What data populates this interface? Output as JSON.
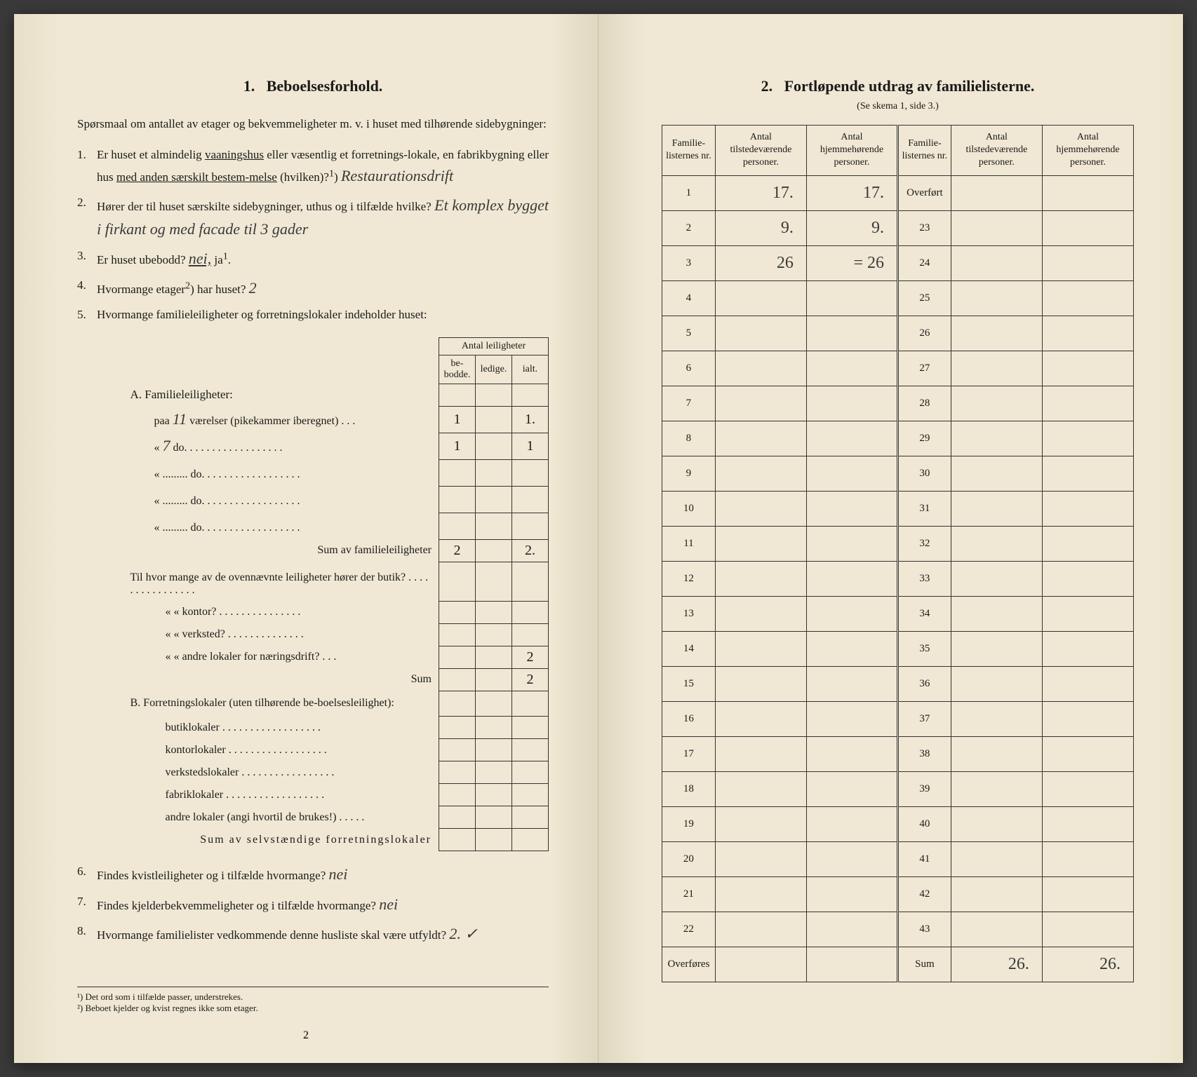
{
  "left": {
    "section_num": "1.",
    "section_title": "Beboelsesforhold.",
    "intro": "Spørsmaal om antallet av etager og bekvemmeligheter m. v. i huset med tilhørende sidebygninger:",
    "q1": {
      "num": "1.",
      "text_a": "Er huset et almindelig ",
      "u1": "vaaningshus",
      "text_b": " eller væsentlig et forretnings-lokale, en fabrikbygning eller hus ",
      "u2": "med anden særskilt bestem-melse",
      "text_c": " (hvilken)?",
      "sup": "1",
      "hand": "Restaurationsdrift"
    },
    "q2": {
      "num": "2.",
      "text": "Hører der til huset særskilte sidebygninger, uthus og i tilfælde hvilke?",
      "hand": "Et komplex bygget i firkant og med facade til 3 gader"
    },
    "q3": {
      "num": "3.",
      "text_a": "Er huset ubebodd? ",
      "u1": "nei,",
      "text_b": " ja",
      "sup": "1",
      "text_c": "."
    },
    "q4": {
      "num": "4.",
      "text_a": "Hvormange etager",
      "sup": "2",
      "text_b": ") har huset?",
      "hand": "2"
    },
    "q5": {
      "num": "5.",
      "text": "Hvormange familieleiligheter og forretningslokaler indeholder huset:"
    },
    "antal_header_top": "Antal leiligheter",
    "antal_headers": [
      "be-bodde.",
      "ledige.",
      "ialt."
    ],
    "sectA_label": "A. Familieleiligheter:",
    "rowsA": [
      {
        "label_pre": "paa ",
        "hand_pre": "11",
        "label_post": " værelser (pikekammer iberegnet) . . .",
        "v1": "1",
        "v2": "",
        "v3": "1."
      },
      {
        "label_pre": "« ",
        "hand_pre": "7",
        "label_post": " do. . . . . . . . . . . . . . . . . .",
        "v1": "1",
        "v2": "",
        "v3": "1"
      },
      {
        "label_pre": "« ......... do. . . . . . . . . . . . . . . . . .",
        "hand_pre": "",
        "label_post": "",
        "v1": "",
        "v2": "",
        "v3": ""
      },
      {
        "label_pre": "« ......... do. . . . . . . . . . . . . . . . . .",
        "hand_pre": "",
        "label_post": "",
        "v1": "",
        "v2": "",
        "v3": ""
      },
      {
        "label_pre": "« ......... do. . . . . . . . . . . . . . . . . .",
        "hand_pre": "",
        "label_post": "",
        "v1": "",
        "v2": "",
        "v3": ""
      }
    ],
    "sumA_label": "Sum av familieleiligheter",
    "sumA": {
      "v1": "2",
      "v2": "",
      "v3": "2."
    },
    "midtext": "Til hvor mange av de ovennævnte leiligheter hører der butik? . . . . . . . . . . . . . . . .",
    "midrows": [
      {
        "label": "«     «  kontor? . . . . . . . . . . . . . . .",
        "v1": "",
        "v2": "",
        "v3": ""
      },
      {
        "label": "«     «  verksted? . . . . . . . . . . . . . .",
        "v1": "",
        "v2": "",
        "v3": ""
      },
      {
        "label": "«     «  andre lokaler for næringsdrift? . . .",
        "v1": "",
        "v2": "",
        "v3": "2"
      }
    ],
    "mid_sum_label": "Sum",
    "mid_sum": {
      "v1": "",
      "v2": "",
      "v3": "2"
    },
    "sectB_label": "B. Forretningslokaler (uten tilhørende be-boelsesleilighet):",
    "rowsB": [
      "butiklokaler . . . . . . . . . . . . . . . . . .",
      "kontorlokaler . . . . . . . . . . . . . . . . . .",
      "verkstedslokaler . . . . . . . . . . . . . . . . .",
      "fabriklokaler . . . . . . . . . . . . . . . . . .",
      "andre lokaler (angi hvortil de brukes!) . . . . ."
    ],
    "sumB_label": "Sum av selvstændige forretningslokaler",
    "q6": {
      "num": "6.",
      "text": "Findes kvistleiligheter og i tilfælde hvormange?",
      "hand": "nei"
    },
    "q7": {
      "num": "7.",
      "text": "Findes kjelderbekvemmeligheter og i tilfælde hvormange?",
      "hand": "nei"
    },
    "q8": {
      "num": "8.",
      "text": "Hvormange familielister vedkommende denne husliste skal være utfyldt?",
      "hand": "2.   ✓"
    },
    "fn1": "¹) Det ord som i tilfælde passer, understrekes.",
    "fn2": "²) Beboet kjelder og kvist regnes ikke som etager.",
    "pagenum": "2"
  },
  "right": {
    "section_num": "2.",
    "section_title": "Fortløpende utdrag av familielisterne.",
    "subtitle": "(Se skema 1, side 3.)",
    "headers": [
      "Familie-listernes nr.",
      "Antal tilstedeværende personer.",
      "Antal hjemmehørende personer.",
      "Familie-listernes nr.",
      "Antal tilstedeværende personer.",
      "Antal hjemmehørende personer."
    ],
    "rows": [
      {
        "n1": "1",
        "a": "17.",
        "b": "17.",
        "n2": "Overført",
        "c": "",
        "d": ""
      },
      {
        "n1": "2",
        "a": "9.",
        "b": "9.",
        "n2": "23",
        "c": "",
        "d": ""
      },
      {
        "n1": "3",
        "a": "26",
        "b": "= 26",
        "n2": "24",
        "c": "",
        "d": ""
      },
      {
        "n1": "4",
        "a": "",
        "b": "",
        "n2": "25",
        "c": "",
        "d": ""
      },
      {
        "n1": "5",
        "a": "",
        "b": "",
        "n2": "26",
        "c": "",
        "d": ""
      },
      {
        "n1": "6",
        "a": "",
        "b": "",
        "n2": "27",
        "c": "",
        "d": ""
      },
      {
        "n1": "7",
        "a": "",
        "b": "",
        "n2": "28",
        "c": "",
        "d": ""
      },
      {
        "n1": "8",
        "a": "",
        "b": "",
        "n2": "29",
        "c": "",
        "d": ""
      },
      {
        "n1": "9",
        "a": "",
        "b": "",
        "n2": "30",
        "c": "",
        "d": ""
      },
      {
        "n1": "10",
        "a": "",
        "b": "",
        "n2": "31",
        "c": "",
        "d": ""
      },
      {
        "n1": "11",
        "a": "",
        "b": "",
        "n2": "32",
        "c": "",
        "d": ""
      },
      {
        "n1": "12",
        "a": "",
        "b": "",
        "n2": "33",
        "c": "",
        "d": ""
      },
      {
        "n1": "13",
        "a": "",
        "b": "",
        "n2": "34",
        "c": "",
        "d": ""
      },
      {
        "n1": "14",
        "a": "",
        "b": "",
        "n2": "35",
        "c": "",
        "d": ""
      },
      {
        "n1": "15",
        "a": "",
        "b": "",
        "n2": "36",
        "c": "",
        "d": ""
      },
      {
        "n1": "16",
        "a": "",
        "b": "",
        "n2": "37",
        "c": "",
        "d": ""
      },
      {
        "n1": "17",
        "a": "",
        "b": "",
        "n2": "38",
        "c": "",
        "d": ""
      },
      {
        "n1": "18",
        "a": "",
        "b": "",
        "n2": "39",
        "c": "",
        "d": ""
      },
      {
        "n1": "19",
        "a": "",
        "b": "",
        "n2": "40",
        "c": "",
        "d": ""
      },
      {
        "n1": "20",
        "a": "",
        "b": "",
        "n2": "41",
        "c": "",
        "d": ""
      },
      {
        "n1": "21",
        "a": "",
        "b": "",
        "n2": "42",
        "c": "",
        "d": ""
      },
      {
        "n1": "22",
        "a": "",
        "b": "",
        "n2": "43",
        "c": "",
        "d": ""
      }
    ],
    "footer": {
      "n1": "Overføres",
      "a": "",
      "b": "",
      "n2": "Sum",
      "c": "26.",
      "d": "26."
    }
  }
}
